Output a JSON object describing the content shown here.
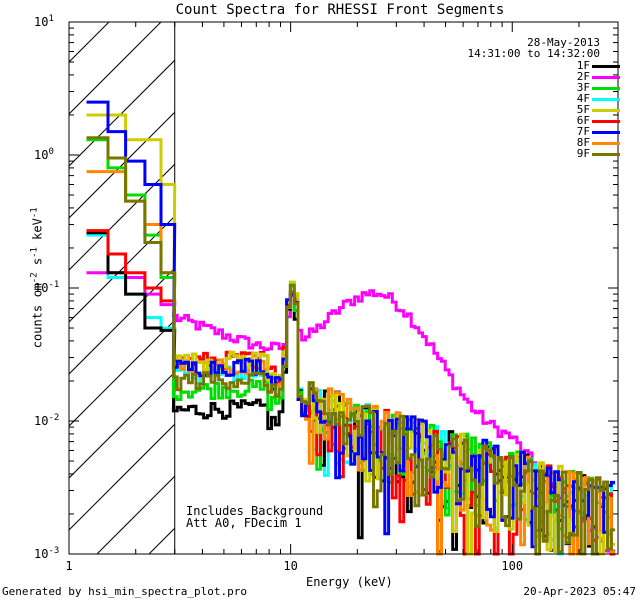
{
  "chart_data": {
    "type": "line",
    "title": "Count Spectra for RHESSI Front Segments",
    "xlabel": "Energy (keV)",
    "ylabel_parts": {
      "a": "counts cm",
      "b": "-2",
      "c": " s",
      "d": "-1",
      "e": " keV",
      "f": "-1"
    },
    "xscale": "log",
    "yscale": "log",
    "xlim": [
      1,
      300
    ],
    "ylim": [
      0.001,
      10
    ],
    "xticks": [
      {
        "v": 1,
        "label": "1"
      },
      {
        "v": 10,
        "label": "10"
      },
      {
        "v": 100,
        "label": "100"
      }
    ],
    "yticks": [
      {
        "v": 10,
        "b": "10",
        "e": "1"
      },
      {
        "v": 1,
        "b": "10",
        "e": "0"
      },
      {
        "v": 0.1,
        "b": "10",
        "e": "-1"
      },
      {
        "v": 0.01,
        "b": "10",
        "e": "-2"
      },
      {
        "v": 0.001,
        "b": "10",
        "e": "-3"
      }
    ],
    "hatched_region_x": [
      1,
      3
    ],
    "date": "28-May-2013",
    "time_range": "14:31:00 to 14:32:00",
    "annotation_lines": [
      "Includes Background",
      "Att A0, FDecim 1"
    ],
    "series": [
      {
        "name": "1F",
        "color": "#000000",
        "low": [
          0.26,
          0.13,
          0.09,
          0.05,
          0.048
        ],
        "ibase": 0.012
      },
      {
        "name": "2F",
        "color": "#ff00ff",
        "low": [
          0.13,
          0.13,
          0.12,
          0.09,
          0.075
        ],
        "ibase": 0.032
      },
      {
        "name": "3F",
        "color": "#00dd00",
        "low": [
          1.3,
          0.8,
          0.5,
          0.25,
          0.12
        ],
        "ibase": 0.017
      },
      {
        "name": "4F",
        "color": "#00ffff",
        "low": [
          0.25,
          0.12,
          0.09,
          0.06,
          0.05
        ],
        "ibase": 0.022
      },
      {
        "name": "5F",
        "color": "#cccc00",
        "low": [
          2.0,
          2.0,
          1.3,
          1.3,
          0.6
        ],
        "ibase": 0.028
      },
      {
        "name": "6F",
        "color": "#ff0000",
        "low": [
          0.27,
          0.18,
          0.13,
          0.1,
          0.08
        ],
        "ibase": 0.028
      },
      {
        "name": "7F",
        "color": "#0000ff",
        "low": [
          2.5,
          1.5,
          0.9,
          0.6,
          0.3
        ],
        "ibase": 0.025
      },
      {
        "name": "8F",
        "color": "#ff8800",
        "low": [
          0.75,
          0.75,
          0.45,
          0.3,
          0.13
        ],
        "ibase": 0.025
      },
      {
        "name": "9F",
        "color": "#777700",
        "low": [
          1.35,
          0.95,
          0.45,
          0.22,
          0.13
        ],
        "ibase": 0.02
      }
    ]
  },
  "footer": {
    "generated_by": "Generated by hsi_min_spectra_plot.pro",
    "timestamp": "20-Apr-2023 05:47"
  }
}
